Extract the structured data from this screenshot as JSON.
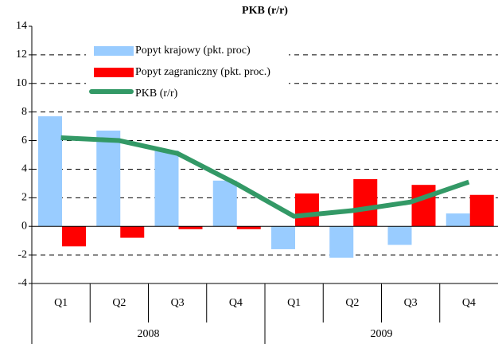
{
  "chart_data": {
    "type": "bar",
    "title": "PKB (r/r)",
    "categories": [
      "Q1",
      "Q2",
      "Q3",
      "Q4",
      "Q1",
      "Q2",
      "Q3",
      "Q4"
    ],
    "groups": [
      "2008",
      "2009"
    ],
    "series": [
      {
        "name": "Popyt krajowy (pkt. proc)",
        "type": "bar",
        "color": "#99ccff",
        "values": [
          7.7,
          6.7,
          5.3,
          3.2,
          -1.6,
          -2.2,
          -1.3,
          0.9
        ]
      },
      {
        "name": "Popyt zagraniczny (pkt. proc.)",
        "type": "bar",
        "color": "#ff0000",
        "values": [
          -1.4,
          -0.8,
          -0.2,
          -0.2,
          2.3,
          3.3,
          2.9,
          2.2
        ]
      },
      {
        "name": "PKB (r/r)",
        "type": "line",
        "color": "#339966",
        "values": [
          6.2,
          6.0,
          5.1,
          3.0,
          0.7,
          1.1,
          1.7,
          3.1
        ]
      }
    ],
    "ylim": [
      -4,
      14
    ],
    "yticks": [
      -4,
      -2,
      0,
      2,
      4,
      6,
      8,
      10,
      12,
      14
    ],
    "grid": true,
    "legend": "upper left"
  }
}
